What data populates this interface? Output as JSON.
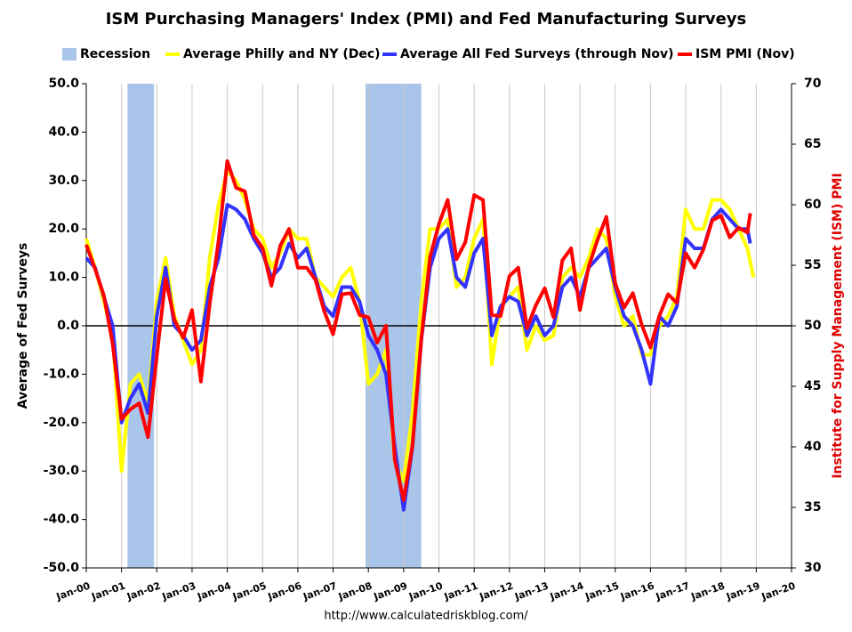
{
  "chart_data": {
    "type": "line",
    "title": "ISM Purchasing Managers' Index (PMI) and Fed Manufacturing Surveys",
    "source": "http://www.calculatedriskblog.com/",
    "ylabel": "Average of Fed Surveys",
    "y2label": "Institute for Supply Management (ISM) PMI",
    "y2label_color": "#e00000",
    "xlim": [
      2000,
      2020
    ],
    "xticks": [
      {
        "value": 2000,
        "label": "Jan-00"
      },
      {
        "value": 2001,
        "label": "Jan-01"
      },
      {
        "value": 2002,
        "label": "Jan-02"
      },
      {
        "value": 2003,
        "label": "Jan-03"
      },
      {
        "value": 2004,
        "label": "Jan-04"
      },
      {
        "value": 2005,
        "label": "Jan-05"
      },
      {
        "value": 2006,
        "label": "Jan-06"
      },
      {
        "value": 2007,
        "label": "Jan-07"
      },
      {
        "value": 2008,
        "label": "Jan-08"
      },
      {
        "value": 2009,
        "label": "Jan-09"
      },
      {
        "value": 2010,
        "label": "Jan-10"
      },
      {
        "value": 2011,
        "label": "Jan-11"
      },
      {
        "value": 2012,
        "label": "Jan-12"
      },
      {
        "value": 2013,
        "label": "Jan-13"
      },
      {
        "value": 2014,
        "label": "Jan-14"
      },
      {
        "value": 2015,
        "label": "Jan-15"
      },
      {
        "value": 2016,
        "label": "Jan-16"
      },
      {
        "value": 2017,
        "label": "Jan-17"
      },
      {
        "value": 2018,
        "label": "Jan-18"
      },
      {
        "value": 2019,
        "label": "Jan-19"
      },
      {
        "value": 2020,
        "label": "Jan-20"
      }
    ],
    "ylim": [
      -50,
      50
    ],
    "yticks": [
      {
        "value": -50,
        "label": "-50.0"
      },
      {
        "value": -40,
        "label": "-40.0"
      },
      {
        "value": -30,
        "label": "-30.0"
      },
      {
        "value": -20,
        "label": "-20.0"
      },
      {
        "value": -10,
        "label": "-10.0"
      },
      {
        "value": 0,
        "label": "0.0"
      },
      {
        "value": 10,
        "label": "10.0"
      },
      {
        "value": 20,
        "label": "20.0"
      },
      {
        "value": 30,
        "label": "30.0"
      },
      {
        "value": 40,
        "label": "40.0"
      },
      {
        "value": 50,
        "label": "50.0"
      }
    ],
    "y2lim": [
      30,
      70
    ],
    "y2ticks": [
      30,
      35,
      40,
      45,
      50,
      55,
      60,
      65,
      70
    ],
    "xgrid": true,
    "recessions": {
      "name": "Recession",
      "color": "#a9c5ea",
      "periods": [
        [
          2001.17,
          2001.92
        ],
        [
          2007.92,
          2009.5
        ]
      ]
    },
    "series": [
      {
        "name": "Average Philly and NY (Dec)",
        "color": "#ffff00",
        "x": [
          2000,
          2000.25,
          2000.5,
          2000.75,
          2001,
          2001.25,
          2001.5,
          2001.75,
          2002,
          2002.25,
          2002.5,
          2002.75,
          2003,
          2003.25,
          2003.5,
          2003.75,
          2004,
          2004.25,
          2004.5,
          2004.75,
          2005,
          2005.25,
          2005.5,
          2005.75,
          2006,
          2006.25,
          2006.5,
          2006.75,
          2007,
          2007.25,
          2007.5,
          2007.75,
          2008,
          2008.25,
          2008.5,
          2008.75,
          2009,
          2009.25,
          2009.5,
          2009.75,
          2010,
          2010.25,
          2010.5,
          2010.75,
          2011,
          2011.25,
          2011.5,
          2011.75,
          2012,
          2012.25,
          2012.5,
          2012.75,
          2013,
          2013.25,
          2013.5,
          2013.75,
          2014,
          2014.25,
          2014.5,
          2014.75,
          2015,
          2015.25,
          2015.5,
          2015.75,
          2016,
          2016.25,
          2016.5,
          2016.75,
          2017,
          2017.25,
          2017.5,
          2017.75,
          2018,
          2018.25,
          2018.5,
          2018.75,
          2018.92
        ],
        "values": [
          18,
          12,
          5,
          -2,
          -30,
          -12,
          -10,
          -16,
          5,
          14,
          2,
          -3,
          -8,
          -5,
          14,
          25,
          32,
          30,
          26,
          20,
          18,
          12,
          15,
          20,
          18,
          18,
          10,
          8,
          6,
          10,
          12,
          5,
          -12,
          -10,
          -5,
          -28,
          -32,
          -18,
          5,
          20,
          20,
          22,
          8,
          10,
          18,
          22,
          -8,
          4,
          6,
          8,
          -5,
          0,
          -3,
          -2,
          10,
          12,
          10,
          14,
          20,
          18,
          6,
          0,
          2,
          -6,
          -6,
          0,
          2,
          6,
          24,
          20,
          20,
          26,
          26,
          24,
          20,
          16,
          10
        ]
      },
      {
        "name": "Average All Fed Surveys (through Nov)",
        "color": "#3333ff",
        "x": [
          2000,
          2000.25,
          2000.5,
          2000.75,
          2001,
          2001.25,
          2001.5,
          2001.75,
          2002,
          2002.25,
          2002.5,
          2002.75,
          2003,
          2003.25,
          2003.5,
          2003.75,
          2004,
          2004.25,
          2004.5,
          2004.75,
          2005,
          2005.25,
          2005.5,
          2005.75,
          2006,
          2006.25,
          2006.5,
          2006.75,
          2007,
          2007.25,
          2007.5,
          2007.75,
          2008,
          2008.25,
          2008.5,
          2008.75,
          2009,
          2009.25,
          2009.5,
          2009.75,
          2010,
          2010.25,
          2010.5,
          2010.75,
          2011,
          2011.25,
          2011.5,
          2011.75,
          2012,
          2012.25,
          2012.5,
          2012.75,
          2013,
          2013.25,
          2013.5,
          2013.75,
          2014,
          2014.25,
          2014.5,
          2014.75,
          2015,
          2015.25,
          2015.5,
          2015.75,
          2016,
          2016.25,
          2016.5,
          2016.75,
          2017,
          2017.25,
          2017.5,
          2017.75,
          2018,
          2018.25,
          2018.5,
          2018.75,
          2018.83
        ],
        "values": [
          14,
          12,
          6,
          0,
          -20,
          -15,
          -12,
          -18,
          2,
          12,
          0,
          -2,
          -5,
          -3,
          8,
          14,
          25,
          24,
          22,
          18,
          15,
          10,
          12,
          17,
          14,
          16,
          10,
          4,
          2,
          8,
          8,
          5,
          -2,
          -5,
          -10,
          -25,
          -38,
          -25,
          -3,
          12,
          18,
          20,
          10,
          8,
          15,
          18,
          -2,
          4,
          6,
          5,
          -2,
          2,
          -2,
          0,
          8,
          10,
          6,
          12,
          14,
          16,
          8,
          2,
          0,
          -5,
          -12,
          2,
          0,
          4,
          18,
          16,
          16,
          22,
          24,
          22,
          20,
          20,
          17
        ]
      },
      {
        "name": "ISM PMI (Nov)",
        "color": "#ff0000",
        "axis": "y2",
        "x": [
          2000,
          2000.25,
          2000.5,
          2000.75,
          2001,
          2001.25,
          2001.5,
          2001.75,
          2002,
          2002.25,
          2002.5,
          2002.75,
          2003,
          2003.25,
          2003.5,
          2003.75,
          2004,
          2004.25,
          2004.5,
          2004.75,
          2005,
          2005.25,
          2005.5,
          2005.75,
          2006,
          2006.25,
          2006.5,
          2006.75,
          2007,
          2007.25,
          2007.5,
          2007.75,
          2008,
          2008.25,
          2008.5,
          2008.75,
          2009,
          2009.25,
          2009.5,
          2009.75,
          2010,
          2010.25,
          2010.5,
          2010.75,
          2011,
          2011.25,
          2011.5,
          2011.75,
          2012,
          2012.25,
          2012.5,
          2012.75,
          2013,
          2013.25,
          2013.5,
          2013.75,
          2014,
          2014.25,
          2014.5,
          2014.75,
          2015,
          2015.25,
          2015.5,
          2015.75,
          2016,
          2016.25,
          2016.5,
          2016.75,
          2017,
          2017.25,
          2017.5,
          2017.75,
          2018,
          2018.25,
          2018.5,
          2018.75,
          2018.83
        ],
        "values": [
          56.7,
          54.7,
          52.5,
          48.5,
          42.3,
          43.1,
          43.6,
          40.8,
          47.5,
          53.9,
          50.5,
          49.0,
          51.3,
          45.4,
          51.8,
          57.0,
          63.6,
          61.4,
          61.1,
          57.5,
          56.4,
          53.3,
          56.6,
          58.0,
          54.8,
          54.8,
          53.8,
          51.2,
          49.3,
          52.6,
          52.7,
          50.9,
          50.7,
          48.6,
          50.0,
          38.9,
          35.6,
          40.1,
          48.9,
          55.7,
          58.4,
          60.4,
          55.5,
          56.9,
          60.8,
          60.4,
          50.9,
          50.8,
          54.1,
          54.8,
          49.8,
          51.7,
          53.1,
          50.7,
          55.4,
          56.4,
          51.3,
          54.9,
          57.1,
          59.0,
          53.5,
          51.5,
          52.7,
          50.1,
          48.2,
          50.8,
          52.6,
          51.9,
          56.0,
          54.8,
          56.3,
          58.7,
          59.1,
          57.3,
          58.1,
          57.7,
          59.3
        ]
      }
    ]
  }
}
